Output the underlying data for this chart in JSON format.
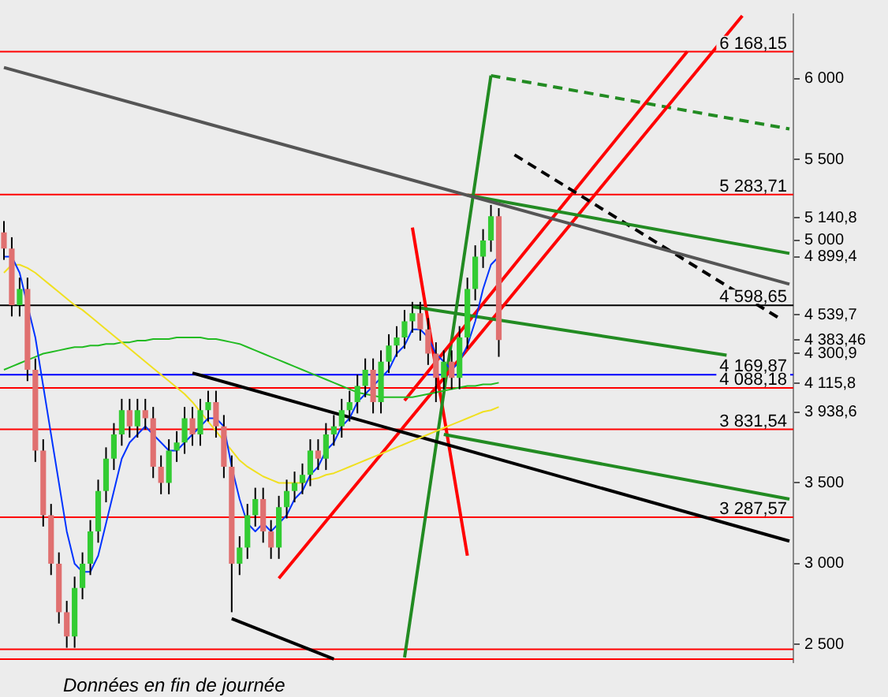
{
  "chart_data": {
    "type": "candlestick",
    "categories": [
      null,
      null,
      null,
      null,
      null,
      null,
      null,
      null,
      null,
      null,
      null,
      null,
      null,
      null,
      null,
      null,
      null,
      null,
      null,
      null,
      null,
      null,
      null,
      null,
      null,
      null,
      null,
      null,
      null,
      null,
      null,
      null,
      null,
      null,
      null,
      null,
      null,
      null,
      null,
      null,
      null,
      null,
      null,
      null,
      null,
      null,
      null,
      null,
      null,
      null,
      null,
      null,
      null,
      null,
      null,
      null,
      null,
      null,
      null,
      null,
      null,
      null,
      null,
      null,
      null,
      null,
      null,
      null,
      null,
      null,
      null,
      null,
      null,
      null,
      null,
      null,
      null,
      null,
      null,
      null,
      null,
      null,
      null,
      null,
      null,
      null,
      null,
      null,
      null,
      null,
      null,
      null,
      null,
      null,
      null,
      null,
      null,
      null,
      null,
      null,
      null
    ],
    "colors": [
      "#e07070",
      "#e07070",
      "#33cc33",
      "#e07070",
      "#e07070",
      "#e07070",
      "#e07070",
      "#e07070",
      "#e07070",
      "#33cc33",
      "#33cc33",
      "#33cc33",
      "#33cc33",
      "#33cc33",
      "#33cc33",
      "#33cc33",
      "#e07070",
      "#33cc33",
      "#e07070",
      "#e07070",
      "#e07070",
      "#33cc33",
      "#33cc33",
      "#33cc33",
      "#e07070",
      "#33cc33",
      "#33cc33",
      "#e07070",
      "#e07070",
      "#e07070",
      "#33cc33",
      "#33cc33",
      "#33cc33",
      "#e07070",
      "#e07070",
      "#33cc33",
      "#33cc33",
      "#33cc33",
      "#33cc33",
      "#33cc33",
      "#e07070",
      "#33cc33",
      "#33cc33",
      "#33cc33",
      "#33cc33",
      "#33cc33",
      "#33cc33",
      "#e07070",
      "#33cc33",
      "#33cc33",
      "#33cc33",
      "#33cc33",
      "#33cc33",
      "#e07070",
      "#e07070",
      "#e07070",
      "#33cc33",
      "#e07070",
      "#33cc33",
      "#33cc33",
      "#33cc33",
      "#33cc33",
      "#33cc33",
      "#e07070",
      null,
      null,
      null,
      null,
      null,
      null,
      null,
      null,
      null,
      null,
      null,
      null,
      null,
      null,
      null,
      null,
      null,
      null,
      null,
      null,
      null,
      null,
      null,
      null,
      null,
      null,
      null,
      null,
      null,
      null,
      null,
      null,
      null,
      null,
      null,
      null,
      null
    ],
    "ohlc": [
      [
        5050,
        5120,
        4880,
        4950
      ],
      [
        4950,
        5020,
        4530,
        4600
      ],
      [
        4600,
        4770,
        4530,
        4700
      ],
      [
        4700,
        4770,
        4130,
        4200
      ],
      [
        4200,
        4270,
        3630,
        3700
      ],
      [
        3700,
        3770,
        3230,
        3300
      ],
      [
        3300,
        3370,
        2930,
        3000
      ],
      [
        3000,
        3070,
        2630,
        2700
      ],
      [
        2700,
        2770,
        2480,
        2550
      ],
      [
        2550,
        2920,
        2480,
        2850
      ],
      [
        2850,
        3070,
        2780,
        3000
      ],
      [
        3000,
        3270,
        2930,
        3200
      ],
      [
        3200,
        3520,
        3130,
        3450
      ],
      [
        3450,
        3720,
        3380,
        3650
      ],
      [
        3650,
        3870,
        3580,
        3800
      ],
      [
        3800,
        4020,
        3730,
        3950
      ],
      [
        3950,
        4020,
        3780,
        3850
      ],
      [
        3850,
        4020,
        3780,
        3950
      ],
      [
        3950,
        4020,
        3830,
        3900
      ],
      [
        3900,
        3970,
        3530,
        3600
      ],
      [
        3600,
        3670,
        3430,
        3500
      ],
      [
        3500,
        3770,
        3430,
        3700
      ],
      [
        3700,
        3820,
        3630,
        3750
      ],
      [
        3750,
        3970,
        3680,
        3900
      ],
      [
        3900,
        3970,
        3730,
        3800
      ],
      [
        3800,
        4020,
        3730,
        3950
      ],
      [
        3950,
        4070,
        3880,
        4000
      ],
      [
        4000,
        4070,
        3780,
        3850
      ],
      [
        3850,
        3920,
        3530,
        3600
      ],
      [
        3600,
        3670,
        2700,
        3000
      ],
      [
        3000,
        3170,
        2930,
        3100
      ],
      [
        3100,
        3370,
        3030,
        3300
      ],
      [
        3300,
        3470,
        3230,
        3400
      ],
      [
        3400,
        3470,
        3130,
        3200
      ],
      [
        3200,
        3270,
        3030,
        3100
      ],
      [
        3100,
        3420,
        3030,
        3350
      ],
      [
        3350,
        3520,
        3280,
        3450
      ],
      [
        3450,
        3570,
        3380,
        3500
      ],
      [
        3500,
        3620,
        3430,
        3550
      ],
      [
        3550,
        3770,
        3480,
        3700
      ],
      [
        3700,
        3770,
        3580,
        3650
      ],
      [
        3650,
        3870,
        3580,
        3800
      ],
      [
        3800,
        3920,
        3730,
        3850
      ],
      [
        3850,
        4020,
        3780,
        3950
      ],
      [
        3950,
        4070,
        3880,
        4000
      ],
      [
        4000,
        4170,
        3930,
        4100
      ],
      [
        4100,
        4270,
        4030,
        4200
      ],
      [
        4200,
        4270,
        3930,
        4000
      ],
      [
        4000,
        4320,
        3930,
        4250
      ],
      [
        4250,
        4420,
        4180,
        4350
      ],
      [
        4350,
        4470,
        4280,
        4400
      ],
      [
        4400,
        4570,
        4330,
        4500
      ],
      [
        4500,
        4620,
        4430,
        4550
      ],
      [
        4550,
        4620,
        4380,
        4450
      ],
      [
        4450,
        4520,
        4230,
        4300
      ],
      [
        4300,
        4370,
        4000,
        4150
      ],
      [
        4150,
        4320,
        4080,
        4250
      ],
      [
        4250,
        4320,
        4080,
        4150
      ],
      [
        4150,
        4470,
        4080,
        4400
      ],
      [
        4400,
        4770,
        4330,
        4700
      ],
      [
        4700,
        4970,
        4630,
        4900
      ],
      [
        4900,
        5070,
        4830,
        5000
      ],
      [
        5000,
        5220,
        4930,
        5150
      ],
      [
        5150,
        5200,
        4280,
        4383.46
      ],
      null,
      null,
      null,
      null,
      null,
      null,
      null,
      null,
      null,
      null,
      null,
      null,
      null,
      null,
      null,
      null,
      null,
      null,
      null,
      null,
      null,
      null,
      null,
      null,
      null,
      null,
      null,
      null,
      null,
      null,
      null,
      null,
      null,
      null,
      null,
      null,
      null
    ],
    "series": [
      {
        "type": "line",
        "color": "#0033ff",
        "values": [
          4900,
          4900,
          4800,
          null,
          4400,
          4100,
          3800,
          3500,
          3200,
          3000,
          2950,
          2950,
          3050,
          3250,
          3450,
          3650,
          3750,
          3800,
          3850,
          3800,
          3750,
          3700,
          3700,
          3750,
          3800,
          3850,
          3900,
          3900,
          3850,
          3600,
          3400,
          3250,
          3200,
          3250,
          3200,
          3250,
          3300,
          3400,
          3450,
          3550,
          3600,
          3700,
          3750,
          3850,
          3900,
          4000,
          4050,
          4100,
          4150,
          4200,
          4300,
          4350,
          4450,
          4450,
          4400,
          4300,
          4250,
          4200,
          4250,
          4350,
          4500,
          4700,
          4850,
          4900,
          null,
          null,
          null,
          null,
          null,
          null,
          null,
          null,
          null,
          null,
          null,
          null,
          null,
          null,
          null,
          null,
          null,
          null,
          null,
          null,
          null,
          null,
          null,
          null,
          null,
          null,
          null,
          null,
          null,
          null,
          null,
          null,
          null,
          null,
          null,
          null,
          null
        ]
      },
      {
        "type": "line",
        "color": "#f0e020",
        "values": [
          4800,
          4850,
          4850,
          4830,
          4800,
          4760,
          4720,
          4680,
          4640,
          4600,
          4570,
          4530,
          4490,
          4450,
          4410,
          4370,
          4330,
          4290,
          4250,
          4210,
          4170,
          4130,
          4090,
          4050,
          4000,
          3940,
          3880,
          3820,
          3760,
          3700,
          3640,
          3600,
          3570,
          3540,
          3520,
          3500,
          3500,
          3500,
          3500,
          3520,
          3530,
          3550,
          3560,
          3580,
          3600,
          3620,
          3640,
          3660,
          3680,
          3700,
          3720,
          3740,
          3760,
          3780,
          3800,
          3820,
          3840,
          3860,
          3880,
          3900,
          3920,
          3940,
          3950,
          3970,
          null,
          null,
          null,
          null,
          null,
          null,
          null,
          null,
          null,
          null,
          null,
          null,
          null,
          null,
          null,
          null,
          null,
          null,
          null,
          null,
          null,
          null,
          null,
          null,
          null,
          null,
          null,
          null,
          null,
          null,
          null,
          null,
          null,
          null,
          null,
          null,
          null
        ]
      },
      {
        "type": "line",
        "color": "#22bb22",
        "values": [
          4200,
          4220,
          4240,
          4260,
          4280,
          4300,
          4310,
          4320,
          4330,
          4340,
          4340,
          4350,
          4350,
          4360,
          4360,
          4370,
          4370,
          4380,
          4380,
          4390,
          4390,
          4390,
          4400,
          4400,
          4400,
          4400,
          4390,
          4390,
          4380,
          4370,
          4360,
          4340,
          4320,
          4300,
          4280,
          4260,
          4240,
          4220,
          4200,
          4180,
          4160,
          4140,
          4120,
          4100,
          4080,
          4060,
          4050,
          4040,
          4030,
          4030,
          4030,
          4030,
          4030,
          4040,
          4050,
          4060,
          4070,
          4080,
          4090,
          4100,
          4100,
          4110,
          4110,
          4120,
          null,
          null,
          null,
          null,
          null,
          null,
          null,
          null,
          null,
          null,
          null,
          null,
          null,
          null,
          null,
          null,
          null,
          null,
          null,
          null,
          null,
          null,
          null,
          null,
          null,
          null,
          null,
          null,
          null,
          null,
          null,
          null,
          null,
          null,
          null,
          null,
          null
        ]
      },
      {
        "type": "line",
        "color": "#555555",
        "values": [
          6070,
          null,
          null,
          null,
          null,
          null,
          null,
          null,
          null,
          null,
          null,
          null,
          null,
          null,
          null,
          null,
          null,
          null,
          null,
          null,
          null,
          null,
          null,
          null,
          null,
          null,
          null,
          null,
          null,
          null,
          null,
          null,
          null,
          null,
          null,
          null,
          null,
          null,
          null,
          null,
          null,
          null,
          null,
          null,
          null,
          null,
          null,
          null,
          null,
          null,
          null,
          null,
          null,
          null,
          null,
          null,
          null,
          null,
          null,
          null,
          null,
          null,
          null,
          null,
          null,
          null,
          null,
          null,
          null,
          null,
          null,
          null,
          null,
          null,
          null,
          null,
          null,
          null,
          null,
          null,
          null,
          null,
          null,
          null,
          null,
          null,
          null,
          null,
          null,
          null,
          null,
          null,
          null,
          null,
          null,
          null,
          null,
          null,
          null,
          null,
          4730
        ]
      },
      {
        "type": "line",
        "color": "#228b22",
        "values": [
          null,
          null,
          null,
          null,
          null,
          null,
          null,
          null,
          null,
          null,
          null,
          null,
          null,
          null,
          null,
          null,
          null,
          null,
          null,
          null,
          null,
          null,
          null,
          null,
          null,
          null,
          null,
          null,
          null,
          null,
          null,
          null,
          null,
          null,
          null,
          null,
          null,
          null,
          null,
          null,
          null,
          null,
          null,
          null,
          null,
          null,
          null,
          null,
          null,
          null,
          null,
          null,
          null,
          null,
          null,
          null,
          null,
          null,
          null,
          5280,
          null,
          null,
          null,
          null,
          null,
          null,
          null,
          null,
          null,
          null,
          null,
          null,
          null,
          null,
          null,
          null,
          null,
          null,
          null,
          null,
          null,
          null,
          null,
          null,
          null,
          null,
          null,
          null,
          null,
          null,
          null,
          null,
          null,
          null,
          null,
          null,
          null,
          null,
          null,
          null,
          4920
        ]
      },
      {
        "type": "line",
        "color": "#228b22",
        "values": [
          null,
          null,
          null,
          null,
          null,
          null,
          null,
          null,
          null,
          null,
          null,
          null,
          null,
          null,
          null,
          null,
          null,
          null,
          null,
          null,
          null,
          null,
          null,
          null,
          null,
          null,
          null,
          null,
          null,
          null,
          null,
          null,
          null,
          null,
          null,
          null,
          null,
          null,
          null,
          null,
          null,
          null,
          null,
          null,
          null,
          null,
          null,
          null,
          null,
          null,
          null,
          null,
          4590,
          null,
          null,
          null,
          null,
          null,
          null,
          null,
          null,
          null,
          null,
          null,
          null,
          null,
          null,
          null,
          null,
          null,
          null,
          null,
          null,
          null,
          null,
          null,
          null,
          null,
          null,
          null,
          null,
          null,
          null,
          null,
          null,
          null,
          null,
          null,
          null,
          null,
          null,
          null,
          4290,
          null,
          null,
          null,
          null,
          null,
          null,
          null,
          null
        ]
      },
      {
        "type": "line",
        "color": "#228b22",
        "values": [
          null,
          null,
          null,
          null,
          null,
          null,
          null,
          null,
          null,
          null,
          null,
          null,
          null,
          null,
          null,
          null,
          null,
          null,
          null,
          null,
          null,
          null,
          null,
          null,
          null,
          null,
          null,
          null,
          null,
          null,
          null,
          null,
          null,
          null,
          null,
          null,
          null,
          null,
          null,
          null,
          null,
          null,
          null,
          null,
          null,
          null,
          null,
          null,
          null,
          null,
          null,
          null,
          null,
          null,
          null,
          null,
          3800,
          null,
          null,
          null,
          null,
          null,
          null,
          null,
          null,
          null,
          null,
          null,
          null,
          null,
          null,
          null,
          null,
          null,
          null,
          null,
          null,
          null,
          null,
          null,
          null,
          null,
          null,
          null,
          null,
          null,
          null,
          null,
          null,
          null,
          null,
          null,
          null,
          null,
          null,
          null,
          null,
          null,
          null,
          null,
          3400
        ]
      },
      {
        "type": "line",
        "color": "#000000",
        "values": [
          null,
          null,
          null,
          null,
          null,
          null,
          null,
          null,
          null,
          null,
          null,
          null,
          null,
          null,
          null,
          null,
          null,
          null,
          null,
          null,
          null,
          null,
          null,
          null,
          4180,
          null,
          null,
          null,
          null,
          null,
          null,
          null,
          null,
          null,
          null,
          null,
          null,
          null,
          null,
          null,
          null,
          null,
          null,
          null,
          null,
          null,
          null,
          null,
          null,
          null,
          null,
          null,
          null,
          null,
          null,
          null,
          null,
          null,
          null,
          null,
          null,
          null,
          null,
          null,
          null,
          null,
          null,
          null,
          null,
          null,
          null,
          null,
          null,
          null,
          null,
          null,
          null,
          null,
          null,
          null,
          null,
          null,
          null,
          null,
          null,
          null,
          null,
          null,
          null,
          null,
          null,
          null,
          null,
          null,
          null,
          null,
          null,
          null,
          null,
          null,
          3140
        ]
      },
      {
        "type": "line",
        "color": "#000000",
        "values": [
          null,
          null,
          null,
          null,
          null,
          null,
          null,
          null,
          null,
          null,
          null,
          null,
          null,
          null,
          null,
          null,
          null,
          null,
          null,
          null,
          null,
          null,
          null,
          null,
          null,
          null,
          null,
          null,
          null,
          2660,
          null,
          null,
          null,
          null,
          null,
          null,
          null,
          null,
          null,
          null,
          null,
          null,
          2410,
          null,
          null,
          null,
          null,
          null,
          null,
          null,
          null,
          null,
          null,
          null,
          null,
          null,
          null,
          null,
          null,
          null,
          null,
          null,
          null,
          null,
          null,
          null,
          null,
          null,
          null,
          null,
          null,
          null,
          null,
          null,
          null,
          null,
          null,
          null,
          null,
          null,
          null,
          null,
          null,
          null,
          null,
          null,
          null,
          null,
          null,
          null,
          null,
          null,
          null,
          null,
          null,
          null,
          null,
          null,
          null,
          null,
          null
        ]
      },
      {
        "type": "line",
        "color": "#000000",
        "line_style": "dashed",
        "values": [
          null,
          null,
          null,
          null,
          null,
          null,
          null,
          null,
          null,
          null,
          null,
          null,
          null,
          null,
          null,
          null,
          null,
          null,
          null,
          null,
          null,
          null,
          null,
          null,
          null,
          null,
          null,
          null,
          null,
          null,
          null,
          null,
          null,
          null,
          null,
          null,
          null,
          null,
          null,
          null,
          null,
          null,
          null,
          null,
          null,
          null,
          null,
          null,
          null,
          null,
          null,
          null,
          null,
          null,
          null,
          null,
          null,
          null,
          null,
          null,
          null,
          null,
          null,
          null,
          null,
          5530,
          null,
          null,
          null,
          null,
          null,
          null,
          null,
          null,
          null,
          null,
          null,
          null,
          null,
          null,
          null,
          null,
          null,
          null,
          null,
          null,
          null,
          null,
          null,
          null,
          null,
          null,
          null,
          null,
          null,
          null,
          null,
          null,
          null,
          4510,
          null
        ]
      },
      {
        "type": "line",
        "color": "#ff0000",
        "values": [
          null,
          null,
          null,
          null,
          null,
          null,
          null,
          null,
          null,
          null,
          null,
          null,
          null,
          null,
          null,
          null,
          null,
          null,
          null,
          null,
          null,
          null,
          null,
          null,
          null,
          null,
          null,
          null,
          null,
          null,
          null,
          null,
          null,
          null,
          null,
          2910,
          null,
          null,
          null,
          null,
          null,
          null,
          null,
          null,
          null,
          null,
          null,
          null,
          null,
          null,
          null,
          null,
          null,
          null,
          null,
          null,
          null,
          null,
          null,
          null,
          null,
          null,
          null,
          null,
          null,
          null,
          null,
          null,
          null,
          null,
          null,
          null,
          null,
          null,
          null,
          null,
          null,
          null,
          null,
          null,
          null,
          null,
          null,
          null,
          null,
          null,
          null,
          null,
          null,
          null,
          null,
          null,
          null,
          null,
          6390,
          null,
          null,
          null,
          null,
          null,
          null
        ]
      },
      {
        "type": "line",
        "color": "#ff0000",
        "values": [
          null,
          null,
          null,
          null,
          null,
          null,
          null,
          null,
          null,
          null,
          null,
          null,
          null,
          null,
          null,
          null,
          null,
          null,
          null,
          null,
          null,
          null,
          null,
          null,
          null,
          null,
          null,
          null,
          null,
          null,
          null,
          null,
          null,
          null,
          null,
          null,
          null,
          null,
          null,
          null,
          null,
          null,
          null,
          null,
          null,
          null,
          null,
          null,
          null,
          null,
          null,
          4010,
          null,
          null,
          null,
          null,
          null,
          null,
          null,
          null,
          null,
          null,
          null,
          null,
          null,
          null,
          null,
          null,
          null,
          null,
          null,
          null,
          null,
          null,
          null,
          null,
          null,
          null,
          null,
          null,
          null,
          null,
          null,
          null,
          null,
          null,
          null,
          6170,
          null,
          null,
          null,
          null,
          null,
          null,
          null,
          null,
          null,
          null,
          null,
          null,
          null
        ]
      },
      {
        "type": "line",
        "color": "#228b22",
        "values": [
          null,
          null,
          null,
          null,
          null,
          null,
          null,
          null,
          null,
          null,
          null,
          null,
          null,
          null,
          null,
          null,
          null,
          null,
          null,
          null,
          null,
          null,
          null,
          null,
          null,
          null,
          null,
          null,
          null,
          null,
          null,
          null,
          null,
          null,
          null,
          null,
          null,
          null,
          null,
          null,
          null,
          null,
          null,
          null,
          null,
          null,
          null,
          null,
          null,
          null,
          null,
          2420,
          null,
          null,
          null,
          null,
          null,
          null,
          null,
          null,
          null,
          null,
          6020,
          null,
          null,
          null,
          null,
          null,
          null,
          null,
          null,
          null,
          null,
          null,
          null,
          null,
          null,
          null,
          null,
          null,
          null,
          null,
          null,
          null,
          null,
          null,
          null,
          null,
          null,
          null,
          null,
          null,
          null,
          null,
          null,
          null,
          null,
          null,
          null,
          null,
          null
        ]
      },
      {
        "type": "line",
        "color": "#228b22",
        "line_style": "dashed",
        "values": [
          null,
          null,
          null,
          null,
          null,
          null,
          null,
          null,
          null,
          null,
          null,
          null,
          null,
          null,
          null,
          null,
          null,
          null,
          null,
          null,
          null,
          null,
          null,
          null,
          null,
          null,
          null,
          null,
          null,
          null,
          null,
          null,
          null,
          null,
          null,
          null,
          null,
          null,
          null,
          null,
          null,
          null,
          null,
          null,
          null,
          null,
          null,
          null,
          null,
          null,
          null,
          null,
          null,
          null,
          null,
          null,
          null,
          null,
          null,
          null,
          null,
          null,
          6020,
          null,
          null,
          null,
          null,
          null,
          null,
          null,
          null,
          null,
          null,
          null,
          null,
          null,
          null,
          null,
          null,
          null,
          null,
          null,
          null,
          null,
          null,
          null,
          null,
          null,
          null,
          null,
          null,
          null,
          null,
          null,
          null,
          null,
          null,
          null,
          null,
          null,
          5690
        ]
      },
      {
        "type": "line",
        "color": "#ff0000",
        "values": [
          null,
          null,
          null,
          null,
          null,
          null,
          null,
          null,
          null,
          null,
          null,
          null,
          null,
          null,
          null,
          null,
          null,
          null,
          null,
          null,
          null,
          null,
          null,
          null,
          null,
          null,
          null,
          null,
          null,
          null,
          null,
          null,
          null,
          null,
          null,
          null,
          null,
          null,
          null,
          null,
          null,
          null,
          null,
          null,
          null,
          null,
          null,
          null,
          null,
          null,
          null,
          null,
          5080,
          null,
          null,
          null,
          null,
          null,
          null,
          3050,
          null,
          null,
          null,
          null,
          null,
          null,
          null,
          null,
          null,
          null,
          null,
          null,
          null,
          null,
          null,
          null,
          null,
          null,
          null,
          null,
          null,
          null,
          null,
          null,
          null,
          null,
          null,
          null,
          null,
          null,
          null,
          null,
          null,
          null,
          null,
          null,
          null,
          null,
          null,
          null,
          null
        ]
      }
    ],
    "ylim": [
      2390,
      6400
    ],
    "yticks": [
      {
        "value": 2500,
        "label": "2 500"
      },
      {
        "value": 3000,
        "label": "3 000"
      },
      {
        "value": 3500,
        "label": "3 500"
      },
      {
        "value": 3938.6,
        "label": "3 938,6"
      },
      {
        "value": 4115.8,
        "label": "4 115,8"
      },
      {
        "value": 4300.9,
        "label": "4 300,9"
      },
      {
        "value": 4383.46,
        "label": "4 383,46"
      },
      {
        "value": 4539.7,
        "label": "4 539,7"
      },
      {
        "value": 4899.4,
        "label": "4 899,4"
      },
      {
        "value": 5000,
        "label": "5 000"
      },
      {
        "value": 5140.8,
        "label": "5 140,8"
      },
      {
        "value": 5500,
        "label": "5 500"
      },
      {
        "value": 6000,
        "label": "6 000"
      }
    ],
    "tick_labels": "y",
    "ref_lines": [
      {
        "axis": "y",
        "value": 6168.15,
        "label": "6 168,15",
        "color": "#ff0000"
      },
      {
        "axis": "y",
        "value": 5283.71,
        "label": "5 283,71",
        "color": "#ff0000"
      },
      {
        "axis": "y",
        "value": 4598.65,
        "label": "4 598,65",
        "color": "#000000"
      },
      {
        "axis": "y",
        "value": 4169.87,
        "label": "4 169,87",
        "color": "#0000ff"
      },
      {
        "axis": "y",
        "value": 4088.18,
        "label": "4 088,18",
        "color": "#ff0000"
      },
      {
        "axis": "y",
        "value": 3831.54,
        "label": "3 831,54",
        "color": "#ff0000"
      },
      {
        "axis": "y",
        "value": 3287.57,
        "label": "3 287,57",
        "color": "#ff0000"
      },
      {
        "axis": "y",
        "value": 2470,
        "label": null,
        "color": "#ff0000"
      },
      {
        "axis": "y",
        "value": 2410,
        "label": null,
        "color": "#ff0000"
      }
    ],
    "annotations": [
      "Données en fin de journée"
    ]
  }
}
